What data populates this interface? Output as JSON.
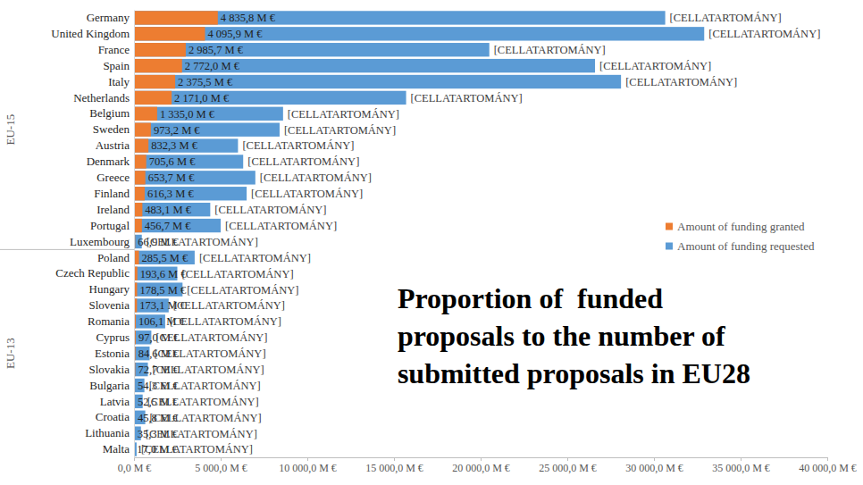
{
  "chart_data": {
    "type": "bar",
    "orientation": "horizontal",
    "stacked": false,
    "grid": false,
    "data_labels": true,
    "legend": "right",
    "title": [
      "Proportion of  funded",
      "proposals to the number of",
      "submitted proposals in EU28"
    ],
    "categories": [
      "Germany",
      "United Kingdom",
      "France",
      "Spain",
      "Italy",
      "Netherlands",
      "Belgium",
      "Sweden",
      "Austria",
      "Denmark",
      "Greece",
      "Finland",
      "Ireland",
      "Portugal",
      "Luxembourg",
      "Poland",
      "Czech Republic",
      "Hungary",
      "Slovenia",
      "Romania",
      "Cyprus",
      "Estonia",
      "Slovakia",
      "Bulgaria",
      "Latvia",
      "Croatia",
      "Lithuania",
      "Malta"
    ],
    "groups": [
      {
        "label": "EU-15",
        "categories": [
          "Germany",
          "United Kingdom",
          "France",
          "Spain",
          "Italy",
          "Netherlands",
          "Belgium",
          "Sweden",
          "Austria",
          "Denmark",
          "Greece",
          "Finland",
          "Ireland",
          "Portugal",
          "Luxembourg"
        ]
      },
      {
        "label": "EU-13",
        "categories": [
          "Poland",
          "Czech Republic",
          "Hungary",
          "Slovenia",
          "Romania",
          "Cyprus",
          "Estonia",
          "Slovakia",
          "Bulgaria",
          "Latvia",
          "Croatia",
          "Lithuania",
          "Malta"
        ]
      }
    ],
    "series": [
      {
        "name": "Amount of funding granted",
        "color": "#ed7d31",
        "values": [
          4835.8,
          4095.9,
          2985.7,
          2772.0,
          2375.5,
          2171.0,
          1335.0,
          973.2,
          832.3,
          705.6,
          653.7,
          616.3,
          483.1,
          456.7,
          66.9,
          285.5,
          193.6,
          178.5,
          173.1,
          106.1,
          97.0,
          84.6,
          72.7,
          54.3,
          52.5,
          45.8,
          35.3,
          17.0
        ],
        "value_labels": [
          "4 835,8 M €",
          "4 095,9 M €",
          "2 985,7 M €",
          "2 772,0 M €",
          "2 375,5 M €",
          "2 171,0 M €",
          "1 335,0 M €",
          "973,2 M €",
          "832,3 M €",
          "705,6 M €",
          "653,7 M €",
          "616,3 M €",
          "483,1 M €",
          "456,7 M €",
          "66,9 M €",
          "285,5 M €",
          "193,6 M €",
          "178,5 M €",
          "173,1 M €",
          "106,1 M €",
          "97,0 M €",
          "84,6 M €",
          "72,7 M €",
          "54,3 M €",
          "52,5 M €",
          "45,8 M €",
          "35,3 M €",
          "17,0 M €"
        ]
      },
      {
        "name": "Amount of funding requested",
        "color": "#5b9bd5",
        "values": [
          30650,
          32900,
          20500,
          26600,
          28100,
          15700,
          8600,
          8400,
          6000,
          6300,
          7000,
          6500,
          4400,
          5000,
          450,
          3500,
          2500,
          2800,
          2000,
          1800,
          1000,
          900,
          800,
          600,
          500,
          650,
          400,
          150
        ],
        "value_labels": [
          "[CELLATARTOMÁNY]",
          "[CELLATARTOMÁNY]",
          "[CELLATARTOMÁNY]",
          "[CELLATARTOMÁNY]",
          "[CELLATARTOMÁNY]",
          "[CELLATARTOMÁNY]",
          "[CELLATARTOMÁNY]",
          "[CELLATARTOMÁNY]",
          "[CELLATARTOMÁNY]",
          "[CELLATARTOMÁNY]",
          "[CELLATARTOMÁNY]",
          "[CELLATARTOMÁNY]",
          "[CELLATARTOMÁNY]",
          "[CELLATARTOMÁNY]",
          "[CELLATARTOMÁNY]",
          "[CELLATARTOMÁNY]",
          "[CELLATARTOMÁNY]",
          "[CELLATARTOMÁNY]",
          "[CELLATARTOMÁNY]",
          "[CELLATARTOMÁNY]",
          "[CELLATARTOMÁNY]",
          "[CELLATARTOMÁNY]",
          "[CELLATARTOMÁNY]",
          "[CELLATARTOMÁNY]",
          "[CELLATARTOMÁNY]",
          "[CELLATARTOMÁNY]",
          "[CELLATARTOMÁNY]",
          "[CELLATARTOMÁNY]"
        ]
      }
    ],
    "xlim": [
      0,
      40000
    ],
    "xticks": [
      {
        "value": 0,
        "label": "0,0 M €"
      },
      {
        "value": 5000,
        "label": "5 000,0 M €"
      },
      {
        "value": 10000,
        "label": "10 000,0 M €"
      },
      {
        "value": 15000,
        "label": "15 000,0 M €"
      },
      {
        "value": 20000,
        "label": "20 000,0 M €"
      },
      {
        "value": 25000,
        "label": "25 000,0 M €"
      },
      {
        "value": 30000,
        "label": "30 000,0 M €"
      },
      {
        "value": 35000,
        "label": "35 000,0 M €"
      },
      {
        "value": 40000,
        "label": "40 000,0 M €"
      }
    ]
  }
}
